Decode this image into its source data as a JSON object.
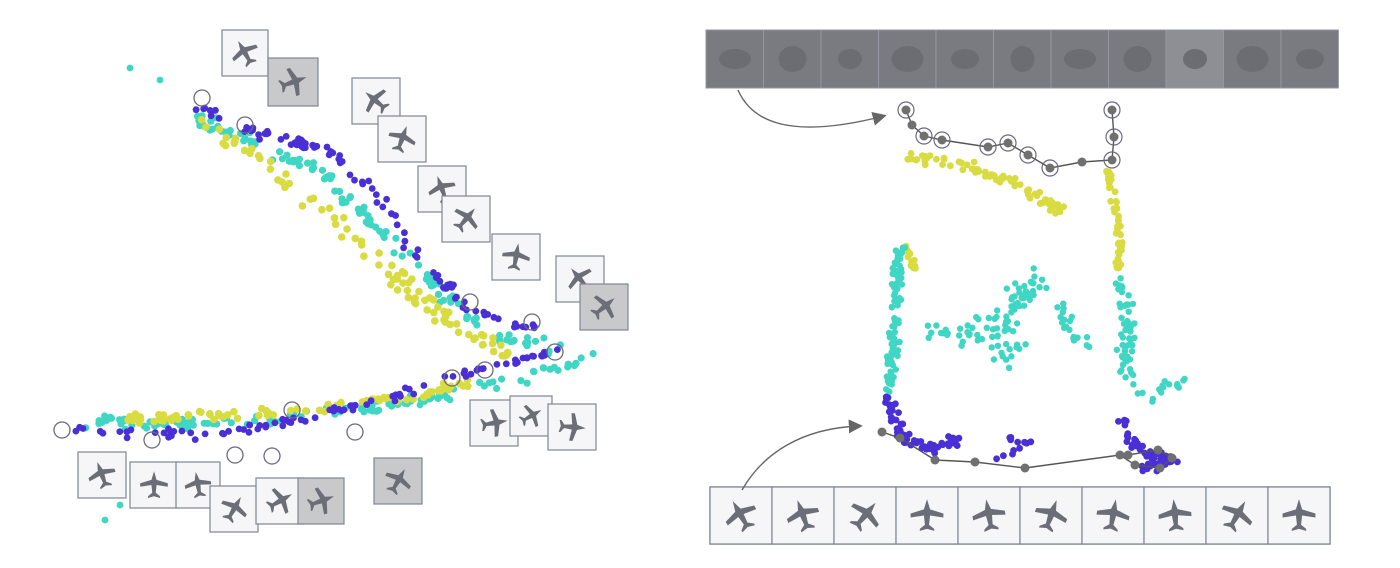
{
  "colors": {
    "class_a": "#4a2fd6",
    "class_b": "#3fd6c4",
    "class_c": "#d8dc40",
    "highlight_ring": "#6a6a80",
    "path_line": "#555555",
    "path_node": "#707070",
    "thumb_border": "#7f8591",
    "thumb_bg": "#f6f6f8",
    "thumb_dark_bg": "#c9c9cc",
    "strip_top_bg": "#77787d",
    "arrow": "#666666"
  },
  "icons": {
    "thumbnail": "airplane-icon",
    "arrow": "curved-arrow-icon"
  },
  "panels": {
    "left": {
      "name": "pose-embedding-left-panel",
      "description_visible": false
    },
    "right": {
      "name": "pose-embedding-right-panel",
      "description_visible": false
    }
  }
}
